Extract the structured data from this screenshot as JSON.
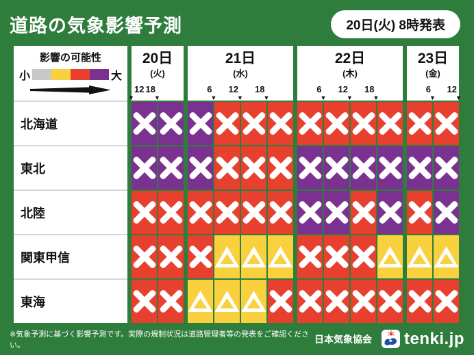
{
  "title": "道路の気象影響予測",
  "issued": "20日(火) 8時発表",
  "legend": {
    "title": "影響の可能性",
    "small_label": "小",
    "large_label": "大",
    "colors": [
      "#c8c8c8",
      "#f9d13e",
      "#e8402f",
      "#7b3190"
    ]
  },
  "levels": {
    "gray": {
      "color": "#c8c8c8",
      "symbol": "none"
    },
    "yellow": {
      "color": "#f9d13e",
      "symbol": "triangle"
    },
    "red": {
      "color": "#e8402f",
      "symbol": "x"
    },
    "purple": {
      "color": "#7b3190",
      "symbol": "x"
    }
  },
  "days": [
    {
      "date": "20日",
      "dow": "(火)",
      "cells": 2,
      "ticks": [
        {
          "label": "12",
          "pos": 0,
          "align": "start"
        },
        {
          "label": "18",
          "pos": 50,
          "align": "end"
        }
      ]
    },
    {
      "date": "21日",
      "dow": "(水)",
      "cells": 4,
      "ticks": [
        {
          "label": "6",
          "pos": 25,
          "align": "end"
        },
        {
          "label": "12",
          "pos": 50,
          "align": "end"
        },
        {
          "label": "18",
          "pos": 75,
          "align": "end"
        }
      ]
    },
    {
      "date": "22日",
      "dow": "(木)",
      "cells": 4,
      "ticks": [
        {
          "label": "6",
          "pos": 25,
          "align": "end"
        },
        {
          "label": "12",
          "pos": 50,
          "align": "end"
        },
        {
          "label": "18",
          "pos": 75,
          "align": "end"
        }
      ]
    },
    {
      "date": "23日",
      "dow": "(金)",
      "cells": 2,
      "ticks": [
        {
          "label": "6",
          "pos": 50,
          "align": "end"
        },
        {
          "label": "12",
          "pos": 100,
          "align": "end"
        }
      ]
    }
  ],
  "rows": [
    {
      "region": "北海道",
      "cells": [
        "purple",
        "purple",
        "purple",
        "red",
        "red",
        "red",
        "red",
        "red",
        "red",
        "red",
        "red",
        "red"
      ]
    },
    {
      "region": "東北",
      "cells": [
        "purple",
        "purple",
        "purple",
        "red",
        "red",
        "red",
        "purple",
        "purple",
        "purple",
        "purple",
        "purple",
        "purple"
      ]
    },
    {
      "region": "北陸",
      "cells": [
        "red",
        "red",
        "red",
        "red",
        "red",
        "red",
        "purple",
        "purple",
        "red",
        "purple",
        "red",
        "purple"
      ]
    },
    {
      "region": "関東甲信",
      "cells": [
        "red",
        "red",
        "red",
        "yellow",
        "yellow",
        "yellow",
        "red",
        "red",
        "red",
        "yellow",
        "yellow",
        "yellow"
      ]
    },
    {
      "region": "東海",
      "cells": [
        "red",
        "red",
        "yellow",
        "yellow",
        "yellow",
        "red",
        "red",
        "red",
        "red",
        "red",
        "red",
        "red"
      ]
    }
  ],
  "footer": {
    "note": "※気象予測に基づく影響予測です。実際の規制状況は道路管理者等の発表をご確認ください。",
    "org": "日本気象協会",
    "brand": "tenki.jp"
  },
  "colors": {
    "background": "#2e7d3c",
    "panel": "#ffffff",
    "text_dark": "#111111",
    "arrow": "#111111"
  }
}
